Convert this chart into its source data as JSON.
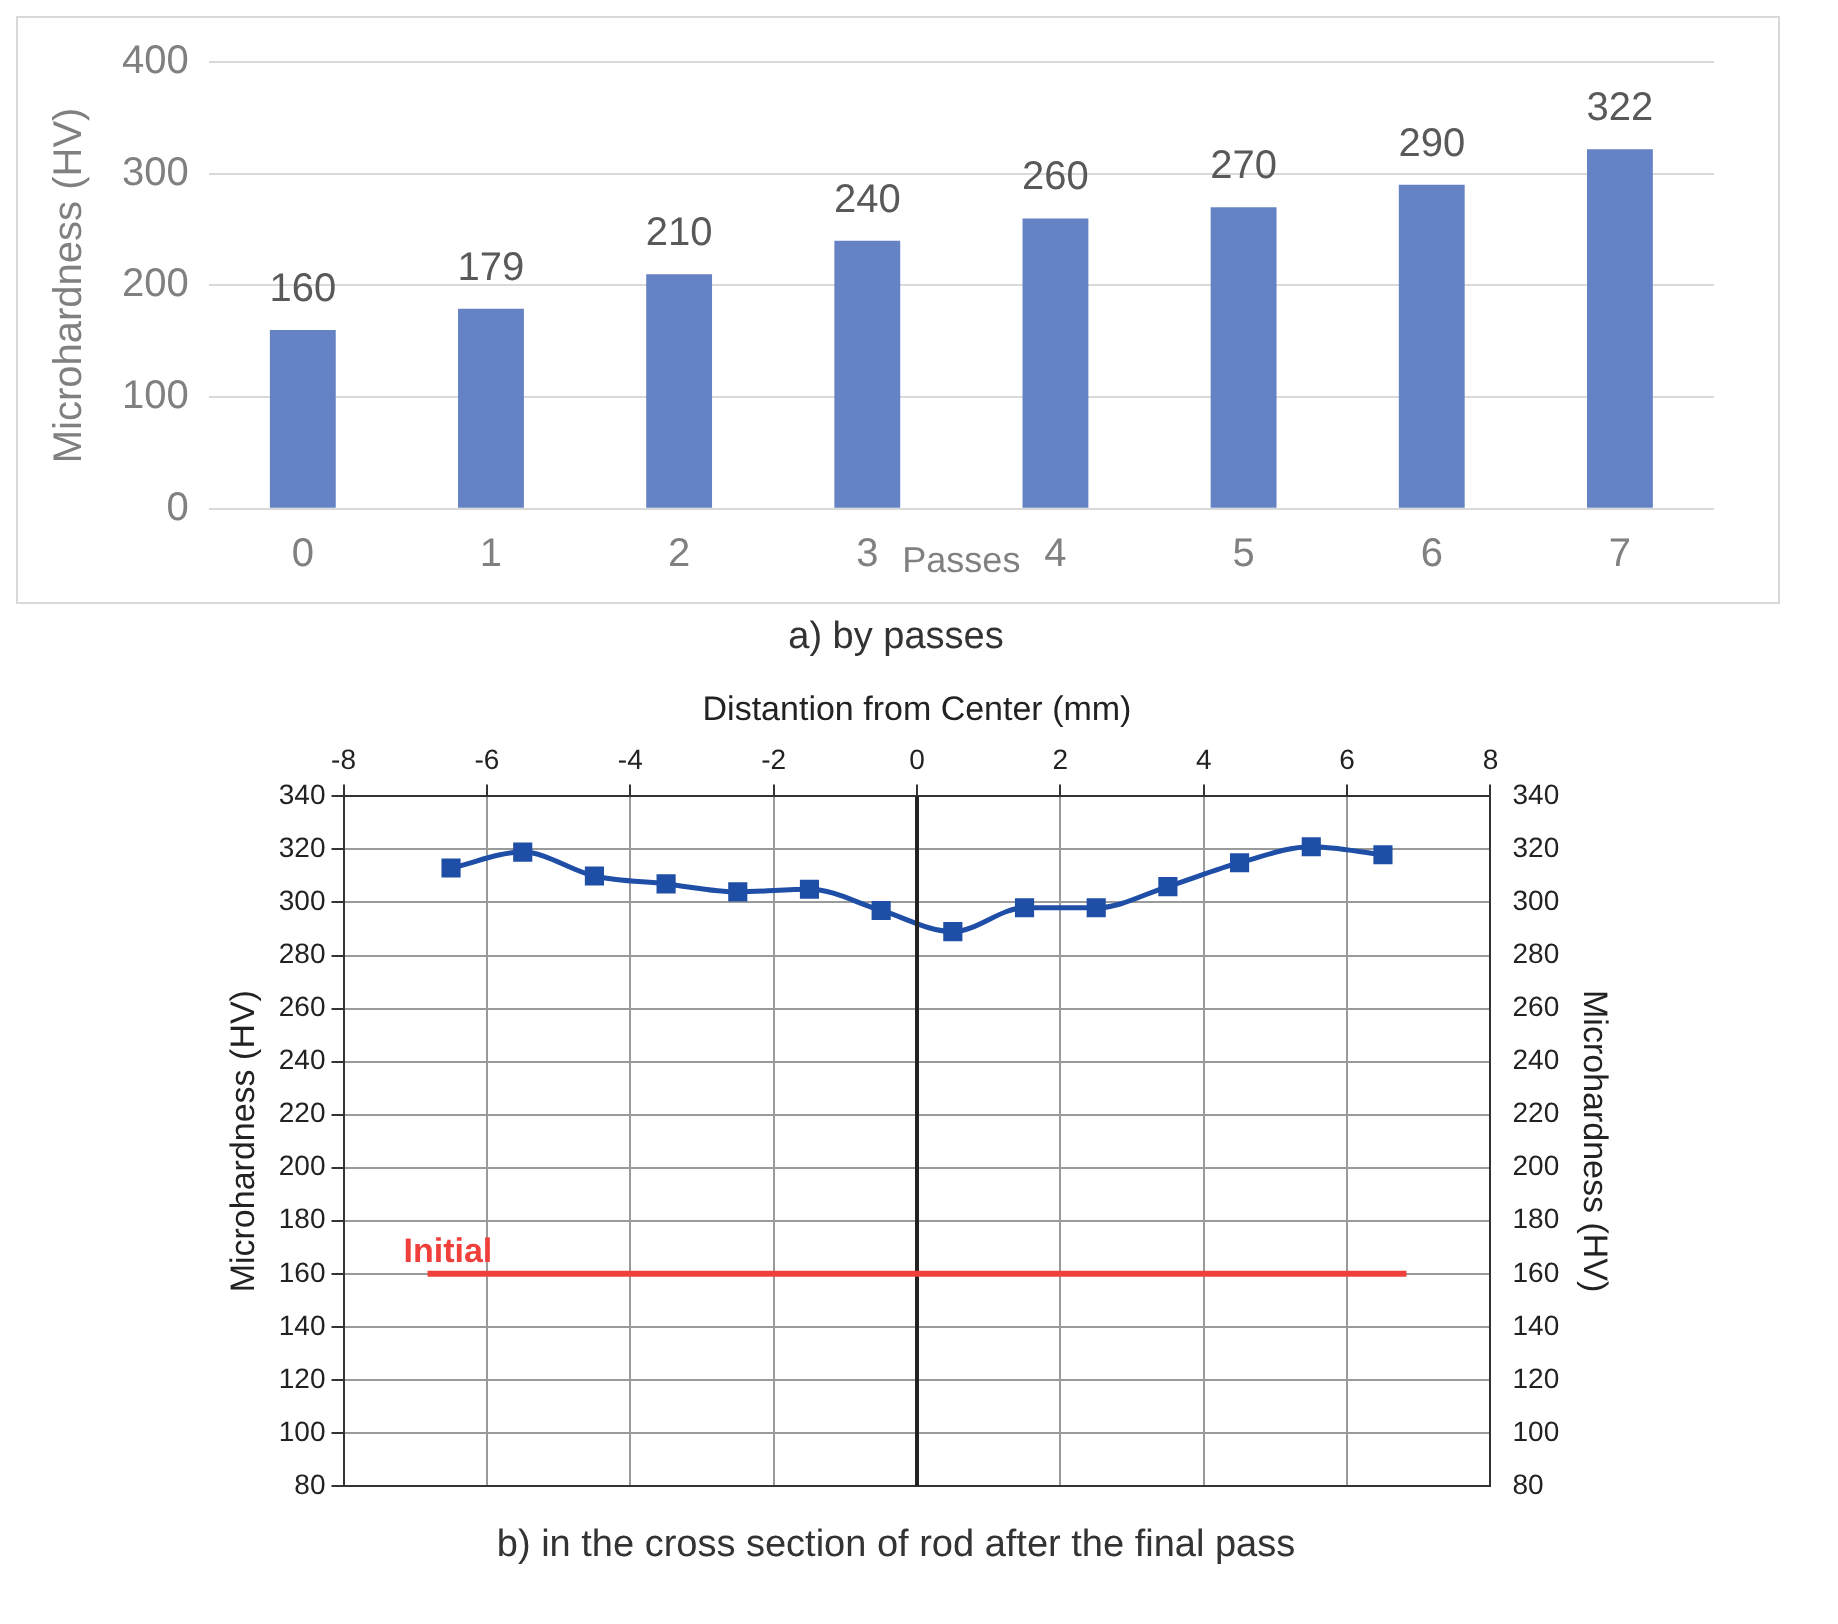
{
  "chart_data": [
    {
      "type": "bar",
      "categories": [
        "0",
        "1",
        "2",
        "3",
        "4",
        "5",
        "6",
        "7"
      ],
      "xlabel": "Passes",
      "ylabel": "Microhardness (HV)",
      "values": [
        160,
        179,
        210,
        240,
        260,
        270,
        290,
        322
      ],
      "color": "#6482c4",
      "ylim": [
        0,
        400
      ],
      "yticks": [
        0,
        100,
        200,
        300,
        400
      ],
      "grid": "y",
      "data_labels": true,
      "legend": false,
      "annotations": [
        "a) by passes"
      ]
    },
    {
      "type": "line",
      "xlabel": "Distantion from Center (mm)",
      "ylabel": "Microhardness (HV)",
      "y2label": "Microhardness (HV)",
      "x": [
        -6.5,
        -5.5,
        -4.5,
        -3.5,
        -2.5,
        -1.5,
        -0.5,
        0.5,
        1.5,
        2.5,
        3.5,
        4.5,
        5.5,
        6.5
      ],
      "values": [
        313,
        319,
        310,
        307,
        304,
        305,
        297,
        289,
        298,
        298,
        306,
        315,
        321,
        318
      ],
      "color": "#1f4ea6",
      "marker": "square",
      "line_style": "solid",
      "xlim": [
        -8,
        8
      ],
      "xticks": [
        -8,
        -6,
        -4,
        -2,
        0,
        2,
        4,
        6,
        8
      ],
      "ylim": [
        80,
        340
      ],
      "yticks": [
        80,
        100,
        120,
        140,
        160,
        180,
        200,
        220,
        240,
        260,
        280,
        300,
        320,
        340
      ],
      "y2lim": [
        80,
        340
      ],
      "y2ticks": [
        80,
        100,
        120,
        140,
        160,
        180,
        200,
        220,
        240,
        260,
        280,
        300,
        320,
        340
      ],
      "grid": true,
      "legend": false,
      "ref_lines": [
        {
          "axis": "x",
          "value": 0,
          "color": "#222222"
        },
        {
          "axis": "y",
          "value": 160,
          "label": "Initial",
          "color": "#f0403c"
        }
      ],
      "annotations": [
        "b) in the cross section of rod after the final pass"
      ]
    }
  ]
}
